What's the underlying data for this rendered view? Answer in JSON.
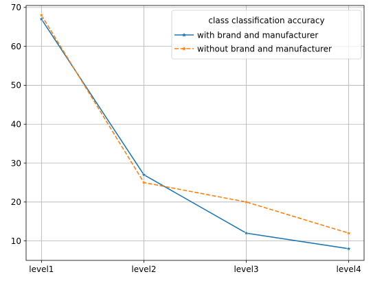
{
  "chart_data": {
    "type": "line",
    "categories": [
      "level1",
      "level2",
      "level3",
      "level4"
    ],
    "series": [
      {
        "name": "with brand and manufacturer",
        "values": [
          67,
          27,
          12,
          8
        ],
        "color": "#1f77b4",
        "dash": "solid",
        "marker": "star"
      },
      {
        "name": "without brand and manufacturer",
        "values": [
          68,
          25,
          20,
          12
        ],
        "color": "#ff7f0e",
        "dash": "dashed",
        "marker": "star"
      }
    ],
    "legend": {
      "title": "class classification accuracy",
      "position": "top-right"
    },
    "yticks": [
      10,
      20,
      30,
      40,
      50,
      60,
      70
    ],
    "ylim": [
      5,
      70.5
    ],
    "grid": true
  }
}
